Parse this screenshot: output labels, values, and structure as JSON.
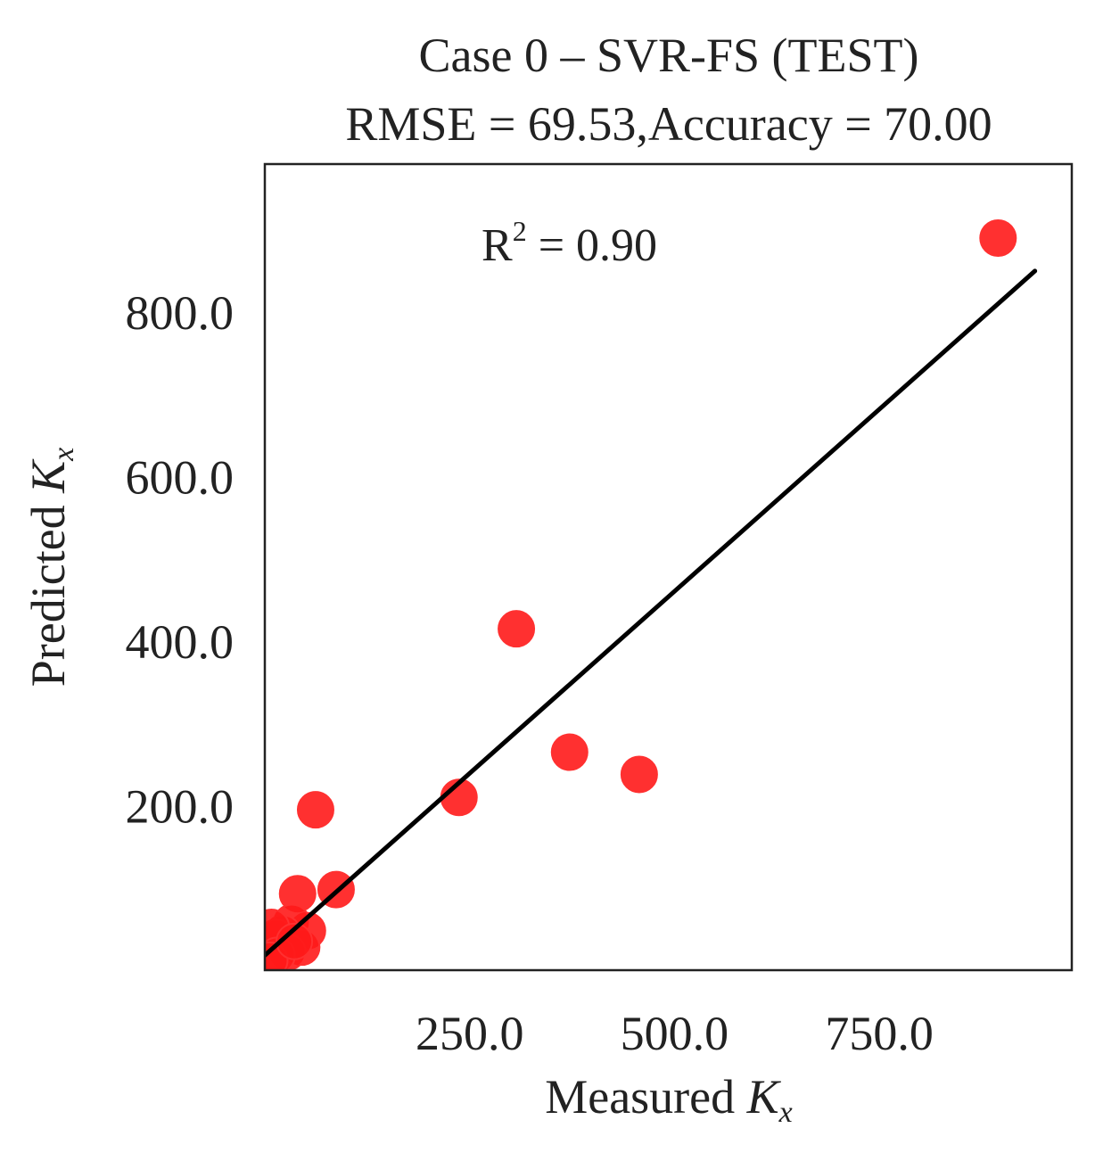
{
  "chart_data": {
    "type": "scatter",
    "title_line1": "Case 0 – SVR-FS (TEST)",
    "title_line2": "RMSE = 69.53,Accuracy = 70.00",
    "xlabel_prefix": "Measured ",
    "ylabel_prefix": "Predicted ",
    "axis_symbol": "K",
    "axis_subscript": "x",
    "annotation_prefix": "R",
    "annotation_sup": "2",
    "annotation_value": " = 0.90",
    "xlim": [
      0,
      985
    ],
    "ylim": [
      0,
      980
    ],
    "xticks": [
      250,
      500,
      750
    ],
    "xtick_labels": [
      "250.0",
      "500.0",
      "750.0"
    ],
    "yticks": [
      200,
      400,
      600,
      800
    ],
    "ytick_labels": [
      "200.0",
      "400.0",
      "600.0",
      "800.0"
    ],
    "marker_color": "#ff1a1a",
    "line_color": "#000000",
    "points": [
      {
        "x": 895,
        "y": 890
      },
      {
        "x": 307,
        "y": 415
      },
      {
        "x": 372,
        "y": 265
      },
      {
        "x": 457,
        "y": 238
      },
      {
        "x": 237,
        "y": 210
      },
      {
        "x": 62,
        "y": 195
      },
      {
        "x": 87,
        "y": 98
      },
      {
        "x": 40,
        "y": 93
      },
      {
        "x": 52,
        "y": 48
      },
      {
        "x": 33,
        "y": 58
      },
      {
        "x": 22,
        "y": 45
      },
      {
        "x": 14,
        "y": 40
      },
      {
        "x": 8,
        "y": 52
      },
      {
        "x": 45,
        "y": 28
      },
      {
        "x": 28,
        "y": 22
      },
      {
        "x": 15,
        "y": 18
      },
      {
        "x": 6,
        "y": 12
      },
      {
        "x": 36,
        "y": 35
      }
    ],
    "fit_line": {
      "x": [
        0,
        940
      ],
      "y": [
        18,
        850
      ]
    }
  }
}
